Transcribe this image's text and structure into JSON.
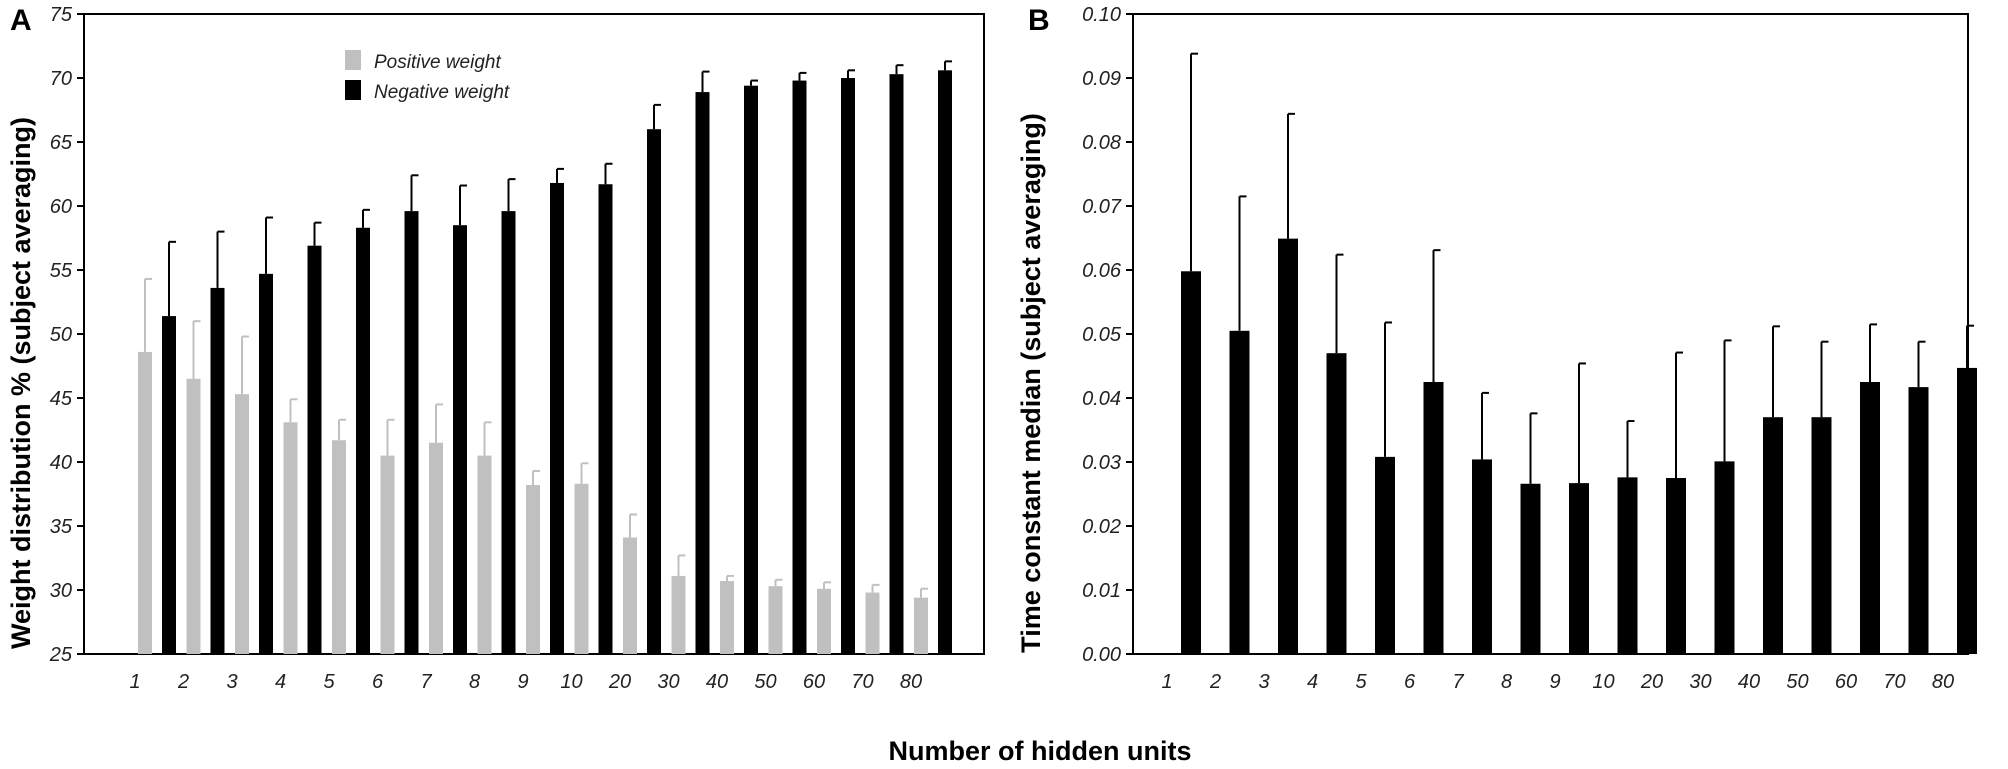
{
  "figure": {
    "xlabel": "Number of hidden units"
  },
  "chart_data": [
    {
      "panel": "A",
      "type": "bar",
      "ylabel": "Weight distribution % (subject averaging)",
      "categories": [
        "1",
        "2",
        "3",
        "4",
        "5",
        "6",
        "7",
        "8",
        "9",
        "10",
        "20",
        "30",
        "40",
        "50",
        "60",
        "70",
        "80"
      ],
      "ylim": [
        25,
        75
      ],
      "yticks": [
        "25",
        "30",
        "35",
        "40",
        "45",
        "50",
        "55",
        "60",
        "65",
        "70",
        "75"
      ],
      "grid": false,
      "legend_position": "top-left",
      "series": [
        {
          "name": "Positive weight",
          "color": "#c0c0c0",
          "values": [
            48.6,
            46.5,
            45.3,
            43.1,
            41.7,
            40.5,
            41.5,
            40.5,
            38.2,
            38.3,
            34.1,
            31.1,
            30.7,
            30.3,
            30.1,
            29.8,
            29.4
          ],
          "errors": [
            5.7,
            4.5,
            4.5,
            1.8,
            1.6,
            2.8,
            3.0,
            2.6,
            1.1,
            1.6,
            1.8,
            1.6,
            0.4,
            0.5,
            0.5,
            0.6,
            0.7
          ]
        },
        {
          "name": "Negative weight",
          "color": "#000000",
          "values": [
            51.4,
            53.6,
            54.7,
            56.9,
            58.3,
            59.6,
            58.5,
            59.6,
            61.8,
            61.7,
            66.0,
            68.9,
            69.4,
            69.8,
            70.0,
            70.3,
            70.6
          ],
          "errors": [
            5.8,
            4.4,
            4.4,
            1.8,
            1.4,
            2.8,
            3.1,
            2.5,
            1.1,
            1.6,
            1.9,
            1.6,
            0.4,
            0.6,
            0.6,
            0.7,
            0.7
          ]
        }
      ]
    },
    {
      "panel": "B",
      "type": "bar",
      "ylabel": "Time constant median (subject averaging)",
      "categories": [
        "1",
        "2",
        "3",
        "4",
        "5",
        "6",
        "7",
        "8",
        "9",
        "10",
        "20",
        "30",
        "40",
        "50",
        "60",
        "70",
        "80"
      ],
      "ylim": [
        0,
        0.1
      ],
      "yticks": [
        "0.00",
        "0.01",
        "0.02",
        "0.03",
        "0.04",
        "0.05",
        "0.06",
        "0.07",
        "0.08",
        "0.09",
        "0.10"
      ],
      "grid": false,
      "series": [
        {
          "color": "#000000",
          "values": [
            0.0598,
            0.0505,
            0.0649,
            0.047,
            0.0308,
            0.0425,
            0.0304,
            0.0266,
            0.0267,
            0.0276,
            0.0275,
            0.0301,
            0.037,
            0.037,
            0.0425,
            0.0417,
            0.0447
          ],
          "errors": [
            0.034,
            0.021,
            0.0195,
            0.0154,
            0.021,
            0.0206,
            0.0104,
            0.011,
            0.0187,
            0.0088,
            0.0196,
            0.0189,
            0.0142,
            0.0118,
            0.009,
            0.0071,
            0.0066
          ]
        }
      ]
    }
  ]
}
